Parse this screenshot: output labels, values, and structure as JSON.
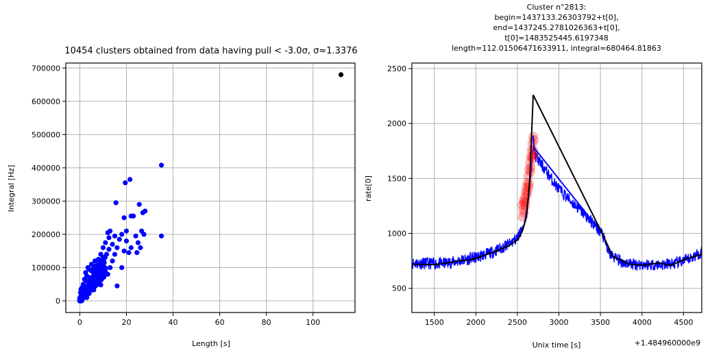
{
  "chart_data": [
    {
      "type": "scatter",
      "title": "10454 clusters obtained from data having pull < -3.0σ, σ≈1.3376",
      "xlabel": "Length [s]",
      "ylabel": "Integral [Hz]",
      "xlim": [
        -6,
        118
      ],
      "ylim": [
        -35000,
        715000
      ],
      "xticks": [
        "0",
        "20",
        "40",
        "60",
        "80",
        "100"
      ],
      "yticks": [
        "0",
        "100000",
        "200000",
        "300000",
        "400000",
        "500000",
        "600000",
        "700000"
      ],
      "grid": true,
      "series": [
        {
          "color": "#0000ff",
          "points": [
            [
              0,
              2000
            ],
            [
              0.2,
              8000
            ],
            [
              0.5,
              15000
            ],
            [
              0.3,
              25000
            ],
            [
              0.8,
              30000
            ],
            [
              1,
              20000
            ],
            [
              1.2,
              5000
            ],
            [
              0.5,
              35000
            ],
            [
              1,
              40000
            ],
            [
              1.5,
              12000
            ],
            [
              2,
              18000
            ],
            [
              2,
              45000
            ],
            [
              2.5,
              28000
            ],
            [
              3,
              60000
            ],
            [
              3,
              10000
            ],
            [
              3.5,
              38000
            ],
            [
              4,
              52000
            ],
            [
              4,
              22000
            ],
            [
              4.5,
              70000
            ],
            [
              5,
              44000
            ],
            [
              5,
              90000
            ],
            [
              5.5,
              62000
            ],
            [
              6,
              80000
            ],
            [
              6,
              33000
            ],
            [
              6.5,
              105000
            ],
            [
              7,
              75000
            ],
            [
              7,
              55000
            ],
            [
              7.5,
              95000
            ],
            [
              8,
              110000
            ],
            [
              8,
              65000
            ],
            [
              8.5,
              85000
            ],
            [
              9,
              120000
            ],
            [
              9,
              48000
            ],
            [
              9.5,
              100000
            ],
            [
              10,
              130000
            ],
            [
              10,
              70000
            ],
            [
              10.5,
              115000
            ],
            [
              11,
              95000
            ],
            [
              11.5,
              140000
            ],
            [
              12,
              80000
            ],
            [
              12,
              205000
            ],
            [
              12.5,
              155000
            ],
            [
              13,
              100000
            ],
            [
              13,
              210000
            ],
            [
              14,
              170000
            ],
            [
              14,
              120000
            ],
            [
              15,
              195000
            ],
            [
              15,
              140000
            ],
            [
              15.5,
              295000
            ],
            [
              16,
              160000
            ],
            [
              17,
              185000
            ],
            [
              18,
              100000
            ],
            [
              18,
              200000
            ],
            [
              19,
              250000
            ],
            [
              19,
              150000
            ],
            [
              19.5,
              355000
            ],
            [
              20,
              210000
            ],
            [
              20,
              180000
            ],
            [
              21,
              145000
            ],
            [
              21.5,
              365000
            ],
            [
              22,
              255000
            ],
            [
              22,
              160000
            ],
            [
              23,
              255000
            ],
            [
              24,
              195000
            ],
            [
              24.5,
              145000
            ],
            [
              25,
              175000
            ],
            [
              25.5,
              290000
            ],
            [
              26,
              160000
            ],
            [
              26.5,
              210000
            ],
            [
              27,
              265000
            ],
            [
              27.5,
              200000
            ],
            [
              28,
              270000
            ],
            [
              35,
              408000
            ],
            [
              35,
              195000
            ],
            [
              3,
              75000
            ],
            [
              2,
              65000
            ],
            [
              1.5,
              50000
            ],
            [
              4,
              95000
            ],
            [
              5,
              110000
            ],
            [
              6,
              100000
            ],
            [
              7,
              90000
            ],
            [
              8,
              125000
            ],
            [
              9,
              140000
            ],
            [
              10,
              160000
            ],
            [
              11,
              175000
            ],
            [
              12.5,
              190000
            ],
            [
              2.5,
              85000
            ],
            [
              3.5,
              100000
            ],
            [
              6.5,
              120000
            ],
            [
              16,
              45000
            ]
          ]
        },
        {
          "color": "#000000",
          "points": [
            [
              112,
              680000
            ]
          ]
        }
      ]
    },
    {
      "type": "line",
      "title": "Cluster n°2813:\nbegin=1437133.26303792+t[0],\nend=1437245.2781026363+t[0],\nt[0]=1483525445.6197348\nlength=112.01506471633911, integral≈680464.81863",
      "xlabel": "Unix time [s]",
      "ylabel": "rate[0]",
      "x_offset_label": "+1.484960000e9",
      "xlim": [
        1230,
        4720
      ],
      "ylim": [
        280,
        2550
      ],
      "xticks": [
        "1500",
        "2000",
        "2500",
        "3000",
        "3500",
        "4000",
        "4500"
      ],
      "yticks": [
        "500",
        "1000",
        "1500",
        "2000",
        "2500"
      ],
      "grid": true,
      "series": [
        {
          "kind": "noisy_rate",
          "color": "#0000ff",
          "x_range": [
            1230,
            4720
          ],
          "envelope": [
            [
              1230,
              730
            ],
            [
              1600,
              725
            ],
            [
              1800,
              750
            ],
            [
              2000,
              780
            ],
            [
              2200,
              830
            ],
            [
              2400,
              900
            ],
            [
              2500,
              960
            ],
            [
              2580,
              1080
            ],
            [
              2640,
              1350
            ],
            [
              2690,
              1780
            ],
            [
              2720,
              1700
            ],
            [
              3000,
              1400
            ],
            [
              3300,
              1180
            ],
            [
              3520,
              1000
            ],
            [
              3600,
              820
            ],
            [
              3750,
              740
            ],
            [
              3900,
              720
            ],
            [
              4200,
              715
            ],
            [
              4400,
              725
            ],
            [
              4550,
              760
            ],
            [
              4720,
              830
            ]
          ]
        },
        {
          "kind": "highlight",
          "color": "#ff0000",
          "points": [
            [
              2560,
              1150
            ],
            [
              2570,
              1220
            ],
            [
              2580,
              1280
            ],
            [
              2590,
              1330
            ],
            [
              2600,
              1380
            ],
            [
              2610,
              1420
            ],
            [
              2620,
              1460
            ],
            [
              2630,
              1520
            ],
            [
              2640,
              1580
            ],
            [
              2650,
              1640
            ],
            [
              2660,
              1700
            ],
            [
              2670,
              1760
            ],
            [
              2680,
              1820
            ],
            [
              2690,
              1880
            ],
            [
              2700,
              1850
            ],
            [
              2560,
              1260
            ],
            [
              2575,
              1300
            ],
            [
              2595,
              1250
            ],
            [
              2615,
              1350
            ],
            [
              2635,
              1420
            ],
            [
              2655,
              1560
            ],
            [
              2675,
              1680
            ],
            [
              2690,
              1760
            ],
            [
              2700,
              1720
            ],
            [
              2580,
              1190
            ],
            [
              2600,
              1290
            ],
            [
              2620,
              1380
            ],
            [
              2640,
              1450
            ],
            [
              2660,
              1600
            ],
            [
              2680,
              1700
            ]
          ]
        },
        {
          "kind": "line",
          "color": "#0000ff",
          "points": [
            [
              2690,
              1890
            ],
            [
              2700,
              1780
            ],
            [
              3520,
              1000
            ]
          ]
        },
        {
          "kind": "line",
          "color": "#000000",
          "points": [
            [
              1230,
              720
            ],
            [
              1500,
              715
            ],
            [
              1650,
              730
            ],
            [
              1800,
              750
            ],
            [
              1950,
              760
            ],
            [
              2100,
              800
            ],
            [
              2250,
              840
            ],
            [
              2400,
              890
            ],
            [
              2500,
              940
            ],
            [
              2560,
              1020
            ],
            [
              2610,
              1150
            ],
            [
              2650,
              1500
            ],
            [
              2690,
              2260
            ],
            [
              3520,
              1000
            ],
            [
              3650,
              790
            ],
            [
              3850,
              720
            ],
            [
              4000,
              710
            ],
            [
              4200,
              730
            ],
            [
              4350,
              710
            ],
            [
              4500,
              760
            ],
            [
              4720,
              810
            ]
          ]
        }
      ]
    }
  ]
}
